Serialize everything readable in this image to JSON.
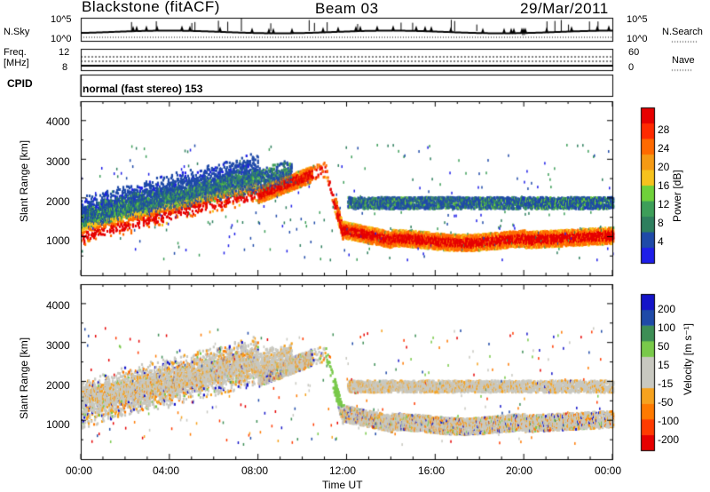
{
  "header": {
    "station": "Blackstone (fitACF)",
    "beam": "Beam 03",
    "date": "29/Mar/2011"
  },
  "top_panels": {
    "nsky_label": "N.Sky",
    "nsky_ticks": [
      "10^5",
      "10^0"
    ],
    "nsearch_label": "N.Search",
    "nsearch_ticks": [
      "10^5",
      "10^0"
    ],
    "freq_label_line1": "Freq.",
    "freq_label_line2": "[MHz]",
    "freq_ticks": [
      "12",
      "8"
    ],
    "nave_label": "Nave",
    "nave_ticks": [
      "60",
      "0"
    ],
    "cpid_label": "CPID",
    "cpid_value": "normal (fast stereo) 153"
  },
  "colors": {
    "power": [
      "#1e1ee8",
      "#1f4aa8",
      "#2e7f5e",
      "#3d9e59",
      "#6fd13a",
      "#f6c21d",
      "#f59a14",
      "#ff6a00",
      "#ff2a00",
      "#e60000"
    ],
    "velocity": [
      "#e60000",
      "#ff3b00",
      "#ff7a00",
      "#f6a21e",
      "#c8c8c0",
      "#c8c8c0",
      "#79c94a",
      "#3d8e55",
      "#1f4aa8",
      "#1414c8"
    ]
  },
  "chart_data": [
    {
      "type": "heatmap",
      "name": "power",
      "ylabel": "Slant Range [km]",
      "ylim": [
        0,
        4500
      ],
      "yticks": [
        "1000",
        "2000",
        "3000",
        "4000"
      ],
      "colorbar_label": "Power [dB]",
      "colorbar_ticks": [
        "4",
        "8",
        "12",
        "16",
        "20",
        "24",
        "28"
      ],
      "colorbar_range": [
        0,
        30
      ]
    },
    {
      "type": "heatmap",
      "name": "velocity",
      "ylabel": "Slant Range [km]",
      "ylim": [
        0,
        4500
      ],
      "yticks": [
        "1000",
        "2000",
        "3000",
        "4000"
      ],
      "colorbar_label": "Velocity [m s⁻¹]",
      "colorbar_ticks": [
        "200",
        "100",
        "50",
        "15",
        "-15",
        "-50",
        "-100",
        "-200"
      ]
    }
  ],
  "x_axis": {
    "label": "Time UT",
    "ticks": [
      "00:00",
      "04:00",
      "08:00",
      "12:00",
      "16:00",
      "20:00",
      "00:00"
    ],
    "xlim_hours": [
      0,
      24
    ]
  }
}
